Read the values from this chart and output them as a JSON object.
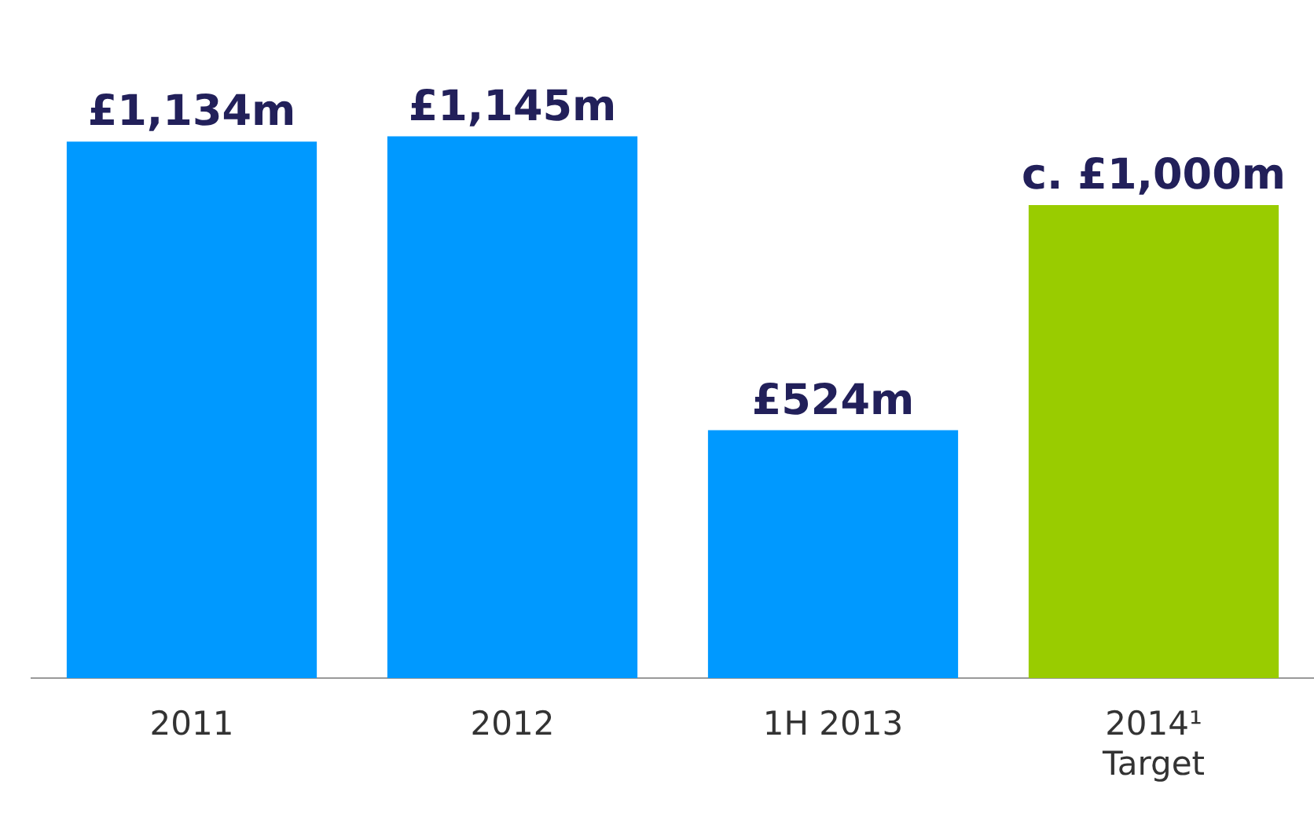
{
  "chart_data": {
    "type": "bar",
    "categories": [
      "2011",
      "2012",
      "1H 2013",
      "2014¹\nTarget"
    ],
    "values": [
      1134,
      1145,
      524,
      1000
    ],
    "colors": [
      "#0099ff",
      "#0099ff",
      "#0099ff",
      "#99cc00"
    ],
    "value_labels": [
      "£1,134m",
      "£1,145m",
      "£524m",
      "c. £1,000m"
    ],
    "grid": false,
    "legend": false,
    "tick_labels": "x"
  }
}
